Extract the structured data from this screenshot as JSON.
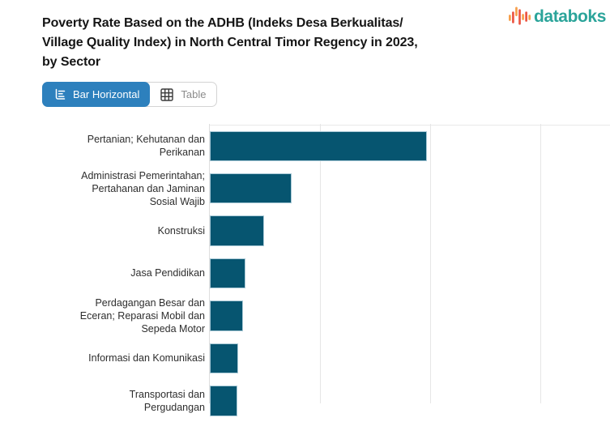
{
  "header": {
    "title_lines": [
      "Poverty Rate Based on the ADHB (Indeks Desa Berkualitas/",
      "Village Quality Index) in North Central Timor Regency in 2023,",
      "by Sector"
    ],
    "brand": "databoks"
  },
  "toolbar": {
    "bar_horizontal_label": "Bar Horizontal",
    "table_label": "Table"
  },
  "colors": {
    "brand_teal": "#2ba49a",
    "logo_orange": "#f6a04b",
    "logo_red": "#ec5542",
    "active_button_blue": "#2d80bd",
    "bar_fill": "#065570",
    "bar_stroke": "#a9c9d6",
    "gridline": "#e6e6e6",
    "axis_line": "#dedede"
  },
  "chart_data": {
    "type": "bar",
    "orientation": "horizontal",
    "title": "Poverty Rate Based on the ADHB (Indeks Desa Berkualitas/ Village Quality Index) in North Central Timor Regency in 2023, by Sector",
    "categories": [
      "Pertanian; Kehutanan dan Perikanan",
      "Administrasi Pemerintahan; Pertahanan dan Jaminan Sosial Wajib",
      "Konstruksi",
      "Jasa Pendidikan",
      "Perdagangan Besar dan Eceran; Reparasi Mobil dan Sepeda Motor",
      "Informasi dan Komunikasi",
      "Transportasi dan Pergudangan"
    ],
    "category_lines": [
      [
        "Pertanian; Kehutanan dan",
        "Perikanan"
      ],
      [
        "Administrasi Pemerintahan;",
        "Pertahanan dan Jaminan",
        "Sosial Wajib"
      ],
      [
        "Konstruksi"
      ],
      [
        "Jasa Pendidikan"
      ],
      [
        "Perdagangan Besar dan",
        "Eceran; Reparasi Mobil dan",
        "Sepeda Motor"
      ],
      [
        "Informasi dan Komunikasi"
      ],
      [
        "Transportasi dan",
        "Pergudangan"
      ]
    ],
    "values": [
      39.4,
      14.9,
      9.9,
      6.5,
      6.0,
      5.1,
      5.0
    ],
    "x_gridlines": [
      0,
      20,
      40,
      60
    ],
    "xmax_visible": 72.6,
    "xlabel": "",
    "ylabel": "",
    "grid": true,
    "legend": false
  }
}
